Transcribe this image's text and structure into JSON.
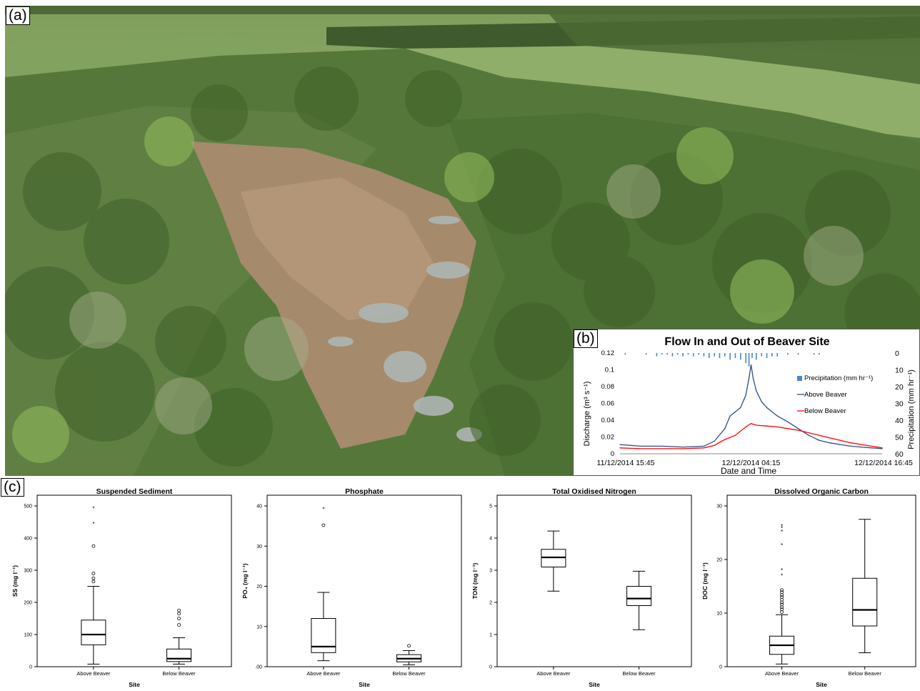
{
  "panels": {
    "a": "(a)",
    "b": "(b)",
    "c": "(c)"
  },
  "colors": {
    "above_beaver": "#2b4e86",
    "below_beaver": "#ff0000",
    "precipitation": "#4a86c8"
  },
  "chart_data": [
    {
      "id": "flow",
      "type": "line",
      "title": "Flow In and Out of Beaver Site",
      "xlabel": "Date and Time",
      "ylabel": "Discharge  (m³ s⁻¹)",
      "y2label": "Precipitation (mm hr⁻¹)",
      "x_ticks": [
        "11/12/2014 15:45",
        "12/12/2014 04:15",
        "12/12/2014 16:45"
      ],
      "ylim": [
        0,
        0.12
      ],
      "y_ticks": [
        "0",
        "0.02",
        "0.04",
        "0.06",
        "0.08",
        "0.1",
        "0.12"
      ],
      "y2lim": [
        0,
        60
      ],
      "y2_reversed": true,
      "y2_ticks": [
        "0",
        "10",
        "20",
        "30",
        "40",
        "50",
        "60"
      ],
      "legend": [
        "Precipitation (mm hr⁻¹)",
        "Above Beaver",
        "Below Beaver"
      ],
      "legend_position": "right",
      "x_range_hours": [
        0,
        25
      ],
      "series": [
        {
          "name": "Above Beaver",
          "x": [
            0,
            2,
            4,
            6,
            8,
            9,
            10,
            10.5,
            11,
            11.5,
            12,
            12.3,
            12.5,
            12.7,
            13,
            13.5,
            14,
            15,
            16,
            17,
            18,
            19,
            20,
            21,
            22,
            23,
            24,
            25
          ],
          "y": [
            0.011,
            0.009,
            0.009,
            0.008,
            0.009,
            0.015,
            0.03,
            0.045,
            0.05,
            0.055,
            0.07,
            0.09,
            0.106,
            0.09,
            0.075,
            0.062,
            0.055,
            0.045,
            0.038,
            0.03,
            0.022,
            0.016,
            0.013,
            0.011,
            0.009,
            0.008,
            0.007,
            0.006
          ]
        },
        {
          "name": "Below Beaver",
          "x": [
            0,
            2,
            4,
            6,
            8,
            9,
            10,
            11,
            12,
            12.5,
            13,
            14,
            15,
            16,
            17,
            18,
            19,
            20,
            21,
            22,
            23,
            24,
            25
          ],
          "y": [
            0.007,
            0.006,
            0.006,
            0.006,
            0.007,
            0.01,
            0.017,
            0.022,
            0.032,
            0.036,
            0.034,
            0.033,
            0.032,
            0.03,
            0.028,
            0.025,
            0.022,
            0.019,
            0.016,
            0.013,
            0.011,
            0.009,
            0.007
          ]
        },
        {
          "name": "Precipitation (mm hr⁻¹)",
          "type": "bar",
          "x": [
            0.5,
            2.5,
            3.5,
            4.0,
            4.5,
            5.0,
            5.5,
            6.0,
            6.5,
            7.0,
            7.5,
            8.0,
            8.5,
            9.0,
            9.5,
            10.0,
            10.5,
            11.0,
            11.5,
            12.0,
            12.3,
            12.6,
            13.0,
            13.5,
            14.0,
            14.5,
            15.0,
            16.0,
            17.0,
            18.5,
            19.0
          ],
          "y": [
            1,
            1,
            2,
            1,
            1,
            2,
            1,
            2,
            1,
            2,
            1,
            2,
            3,
            2,
            3,
            2,
            4,
            3,
            4,
            6,
            8,
            3,
            4,
            2,
            3,
            2,
            2,
            1,
            1,
            1,
            1
          ]
        }
      ]
    },
    {
      "id": "ss",
      "type": "boxplot",
      "title": "Suspended Sediment",
      "xlabel": "Site",
      "ylabel": "SS (mg l⁻¹)",
      "ylim": [
        0,
        500
      ],
      "y_ticks": [
        "0",
        "100",
        "200",
        "300",
        "400",
        "500"
      ],
      "categories": [
        "Above Beaver",
        "Below Beaver"
      ],
      "boxes": [
        {
          "whisker_low": 8,
          "q1": 68,
          "median": 100,
          "q3": 145,
          "whisker_high": 250,
          "outliers": [
            265,
            275,
            290,
            375
          ],
          "extremes": [
            445,
            492
          ]
        },
        {
          "whisker_low": 8,
          "q1": 16,
          "median": 25,
          "q3": 55,
          "whisker_high": 90,
          "outliers": [
            130,
            150,
            165,
            175
          ],
          "extremes": []
        }
      ]
    },
    {
      "id": "po4",
      "type": "boxplot",
      "title": "Phosphate",
      "xlabel": "Site",
      "ylabel": "PO₄ (mg l⁻¹)",
      "ylim": [
        0,
        40
      ],
      "y_ticks": [
        ".00",
        "10",
        "20",
        "30",
        "40"
      ],
      "categories": [
        "Above Beaver",
        "Below Beaver"
      ],
      "boxes": [
        {
          "whisker_low": 1.5,
          "q1": 3.5,
          "median": 5.0,
          "q3": 12.0,
          "whisker_high": 18.5,
          "outliers": [
            35.2
          ],
          "extremes": [
            39.2
          ]
        },
        {
          "whisker_low": 0.5,
          "q1": 1.2,
          "median": 2.0,
          "q3": 3.0,
          "whisker_high": 4.0,
          "outliers": [
            5.2
          ],
          "extremes": []
        }
      ]
    },
    {
      "id": "ton",
      "type": "boxplot",
      "title": "Total Oxidised Nitrogen",
      "xlabel": "Site",
      "ylabel": "TON (mg l⁻¹)",
      "ylim": [
        0,
        5
      ],
      "y_ticks": [
        "0",
        "1",
        "2",
        "3",
        "4",
        "5"
      ],
      "categories": [
        "Above Beaver",
        "Below Beaver"
      ],
      "boxes": [
        {
          "whisker_low": 2.35,
          "q1": 3.1,
          "median": 3.4,
          "q3": 3.65,
          "whisker_high": 4.22,
          "outliers": [],
          "extremes": []
        },
        {
          "whisker_low": 1.15,
          "q1": 1.9,
          "median": 2.12,
          "q3": 2.5,
          "whisker_high": 2.97,
          "outliers": [],
          "extremes": []
        }
      ]
    },
    {
      "id": "doc",
      "type": "boxplot",
      "title": "Dissolved Organic Carbon",
      "xlabel": "Site",
      "ylabel": "DOC (mg l⁻¹)",
      "ylim": [
        0,
        30
      ],
      "y_ticks": [
        "0",
        "10",
        "20",
        "30"
      ],
      "categories": [
        "Above Beaver",
        "Below Beaver"
      ],
      "boxes": [
        {
          "whisker_low": 0.5,
          "q1": 2.3,
          "median": 4.0,
          "q3": 5.7,
          "whisker_high": 9.7,
          "outliers": [
            10.2,
            10.7,
            11.1,
            11.6,
            12.0,
            12.5,
            13.0,
            13.4,
            13.9,
            14.3
          ],
          "extremes": [
            17.0,
            18.0,
            22.7,
            25.2,
            25.9,
            26.3
          ]
        },
        {
          "whisker_low": 2.6,
          "q1": 7.6,
          "median": 10.6,
          "q3": 16.5,
          "whisker_high": 27.5,
          "outliers": [],
          "extremes": []
        }
      ]
    }
  ]
}
